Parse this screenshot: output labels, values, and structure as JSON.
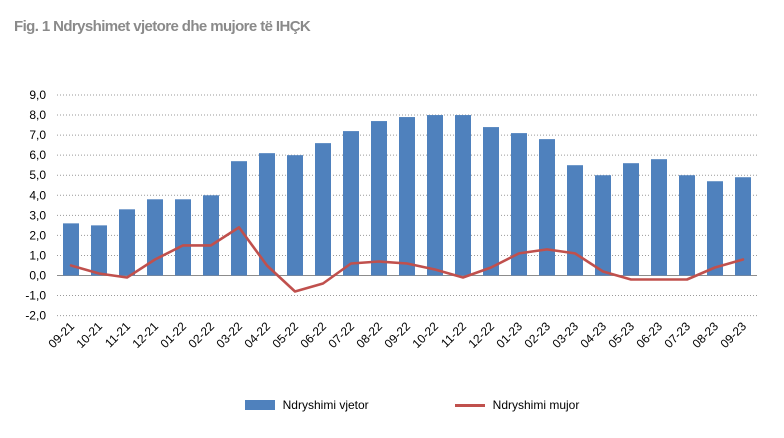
{
  "title": "Fig. 1 Ndryshimet vjetore dhe mujore të IHÇK",
  "chart_data": {
    "type": "bar",
    "categories": [
      "09-21",
      "10-21",
      "11-21",
      "12-21",
      "01-22",
      "02-22",
      "03-22",
      "04-22",
      "05-22",
      "06-22",
      "07-22",
      "08-22",
      "09-22",
      "10-22",
      "11-22",
      "12-22",
      "01-23",
      "02-23",
      "03-23",
      "04-23",
      "05-23",
      "06-23",
      "07-23",
      "08-23",
      "09-23"
    ],
    "series": [
      {
        "name": "Ndryshimi vjetor",
        "kind": "bar",
        "color": "#4f81bd",
        "values": [
          2.6,
          2.5,
          3.3,
          3.8,
          3.8,
          4.0,
          5.7,
          6.1,
          6.0,
          6.6,
          7.2,
          7.7,
          7.9,
          8.0,
          8.0,
          7.4,
          7.1,
          6.8,
          5.5,
          5.0,
          5.6,
          5.8,
          5.0,
          4.7,
          4.9
        ]
      },
      {
        "name": "Ndryshimi mujor",
        "kind": "line",
        "color": "#c0504d",
        "values": [
          0.5,
          0.1,
          -0.1,
          0.8,
          1.5,
          1.5,
          2.4,
          0.5,
          -0.8,
          -0.4,
          0.6,
          0.7,
          0.6,
          0.3,
          -0.1,
          0.4,
          1.1,
          1.3,
          1.1,
          0.2,
          -0.2,
          -0.2,
          -0.2,
          0.4,
          0.8
        ]
      }
    ],
    "y_ticks": [
      "9,0",
      "8,0",
      "7,0",
      "6,0",
      "5,0",
      "4,0",
      "3,0",
      "2,0",
      "1,0",
      "0,0",
      "-1,0",
      "-2,0"
    ],
    "ylim": [
      -2,
      9
    ],
    "grid": "horizontal-dotted",
    "legend_position": "bottom-center"
  }
}
